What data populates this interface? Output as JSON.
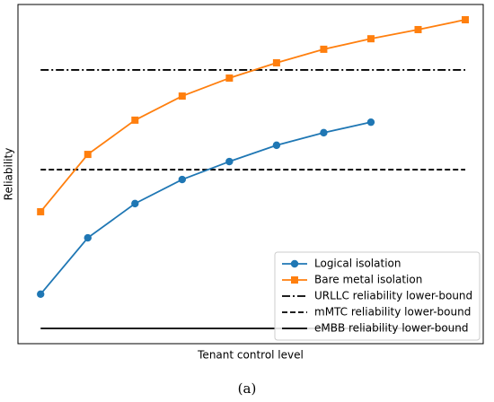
{
  "chart_data": {
    "type": "line",
    "ylabel": "Reliability",
    "xlabel": "Tenant control level",
    "caption": "(a)",
    "x": [
      1,
      2,
      3,
      4,
      5,
      6,
      7,
      8,
      9,
      10
    ],
    "xlim": [
      0.52,
      10.38
    ],
    "ylim": [
      0,
      1
    ],
    "legend": "lower right",
    "series": [
      {
        "name": "Logical isolation",
        "color": "#1f77b4",
        "marker": "circle",
        "values": [
          0.146,
          0.312,
          0.413,
          0.484,
          0.537,
          0.585,
          0.622,
          0.653,
          null,
          null
        ]
      },
      {
        "name": "Bare metal isolation",
        "color": "#ff7f0e",
        "marker": "square",
        "values": [
          0.389,
          0.558,
          0.659,
          0.73,
          0.783,
          0.828,
          0.868,
          0.899,
          0.926,
          0.955
        ]
      }
    ],
    "hlines": [
      {
        "name": "URLLC reliability lower-bound",
        "color": "#000000",
        "linestyle": "dashdot",
        "value": 0.807
      },
      {
        "name": "mMTC reliability lower-bound",
        "color": "#000000",
        "linestyle": "dashed",
        "value": 0.513
      },
      {
        "name": "eMBB reliability lower-bound",
        "color": "#000000",
        "linestyle": "solid",
        "value": 0.045
      }
    ]
  }
}
